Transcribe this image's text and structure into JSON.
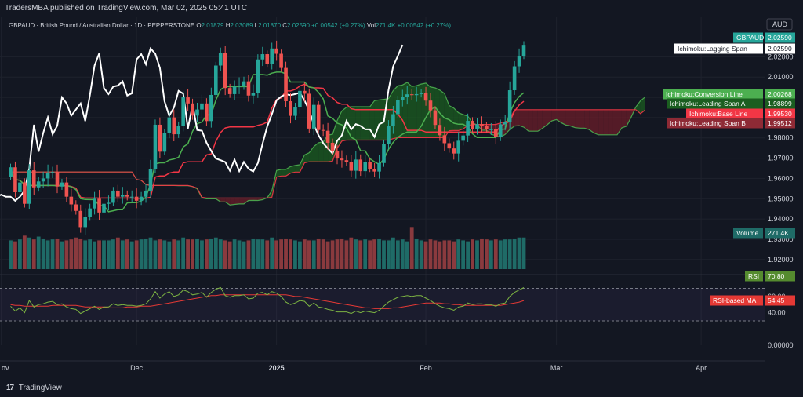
{
  "publish_line": "TradersMBA published on TradingView.com, Mar 02, 2025 05:41 UTC",
  "footer_logo": "TradingView",
  "colors": {
    "background": "#131722",
    "up": "#26a69a",
    "down": "#ef5350",
    "conversion": "#4caf50",
    "base": "#f23645",
    "lagging": "#ffffff",
    "cloud_bull": "#1b5e20",
    "cloud_bear": "#6b1e2a",
    "rsi": "#7cb342",
    "rsi_ma": "#e53935",
    "volume_up": "#1f6b67",
    "volume_down": "#8a3a3e"
  },
  "chart_data": [
    {
      "type": "candlestick",
      "symbol_info": {
        "name": "GBPAUD · British Pound / Australian Dollar · 1D · PEPPERSTONE",
        "o_label": "O",
        "o_value": "2.01879",
        "h_label": "H",
        "h_value": "2.03089",
        "l_label": "L",
        "l_value": "2.01870",
        "c_label": "C",
        "c_value": "2.02590",
        "change": "+0.00542 (+0.27%)",
        "vol_label": "Vol",
        "vol_value": "271.4K",
        "vol_change": "+0.00542 (+0.27%)"
      },
      "currency": "AUD",
      "y_ticks": [
        1.92,
        1.93,
        1.94,
        1.95,
        1.96,
        1.97,
        1.98,
        1.99,
        2.0,
        2.01,
        2.02
      ],
      "y_tick_labels": [
        "1.92000",
        "1.93000",
        "1.94000",
        "1.95000",
        "1.96000",
        "1.97000",
        "1.98000",
        "1.99000",
        "2.00000",
        "2.01000",
        "2.02000"
      ],
      "ylim": [
        1.9145,
        2.0395
      ],
      "x_labels": [
        {
          "label": "ov",
          "i": -2
        },
        {
          "label": "Dec",
          "i": 27
        },
        {
          "label": "2025",
          "i": 57
        },
        {
          "label": "Feb",
          "i": 89
        },
        {
          "label": "Mar",
          "i": 117
        },
        {
          "label": "Apr",
          "i": 148
        }
      ],
      "price_start": 1.9607,
      "closes": [
        1.9655,
        1.9532,
        1.958,
        1.9475,
        1.964,
        1.9556,
        1.9585,
        1.96,
        1.9625,
        1.9632,
        1.956,
        1.958,
        1.951,
        1.9472,
        1.944,
        1.936,
        1.9412,
        1.9452,
        1.95,
        1.9432,
        1.9475,
        1.948,
        1.954,
        1.951,
        1.952,
        1.951,
        1.951,
        1.949,
        1.951,
        1.954,
        1.9648,
        1.9865,
        1.9732,
        1.9824,
        1.9901,
        1.9818,
        1.986,
        2.0,
        1.997,
        1.991,
        1.994,
        1.997,
        1.9883,
        2.0012,
        2.0157,
        2.0217,
        2.0046,
        2.0016,
        2.0053,
        2.0058,
        2.0079,
        2.0009,
        2.002,
        2.0187,
        2.0213,
        2.0163,
        2.0241,
        2.0215,
        2.0145,
        1.9981,
        1.9909,
        1.995,
        2.0032,
        2.0018,
        1.9846,
        1.9963,
        1.9839,
        1.9835,
        1.9776,
        1.9735,
        1.9698,
        1.969,
        1.9681,
        1.9638,
        1.9693,
        1.9636,
        1.9681,
        1.9648,
        1.9634,
        1.9676,
        1.9771,
        1.9857,
        1.9917,
        1.9985,
        2.0004,
        2.0015,
        2.0011,
        2.0016,
        2.0023,
        1.9984,
        1.9936,
        1.9864,
        1.9813,
        1.9774,
        1.9748,
        1.9723,
        1.9786,
        1.9812,
        1.9884,
        1.9842,
        1.9868,
        1.9859,
        1.9842,
        1.9842,
        1.9805,
        1.9867,
        1.9879,
        2.0035,
        2.0153,
        2.0205,
        2.0259
      ],
      "volume": {
        "label": "Volume",
        "value_label": "271.4K",
        "values": [
          60,
          58,
          62,
          70,
          66,
          62,
          68,
          64,
          60,
          62,
          64,
          58,
          60,
          62,
          66,
          64,
          60,
          62,
          58,
          60,
          60,
          60,
          62,
          66,
          60,
          62,
          58,
          60,
          62,
          64,
          66,
          60,
          62,
          60,
          58,
          62,
          60,
          66,
          62,
          62,
          64,
          60,
          62,
          64,
          66,
          62,
          60,
          58,
          62,
          60,
          58,
          60,
          64,
          62,
          62,
          60,
          66,
          60,
          62,
          64,
          62,
          60,
          58,
          62,
          60,
          60,
          64,
          62,
          58,
          60,
          62,
          64,
          60,
          66,
          62,
          60,
          62,
          60,
          62,
          64,
          60,
          60,
          66,
          60,
          62,
          58,
          88,
          64,
          60,
          58,
          62,
          60,
          58,
          60,
          60,
          58,
          62,
          60,
          58,
          62,
          60,
          64,
          62,
          60,
          62,
          60,
          62,
          62,
          64,
          66,
          66
        ],
        "ylim": [
          0,
          100
        ]
      },
      "ichimoku": {
        "conversion_label": "Ichimoku:Conversion Line",
        "conversion_value": "2.00268",
        "base_label": "Ichimoku:Base Line",
        "base_value": "1.99530",
        "span_a_label": "Ichimoku:Leading Span A",
        "span_a_value": "1.98899",
        "span_b_label": "Ichimoku:Leading Span B",
        "span_b_value": "1.99512",
        "lagging_label": "Ichimoku:Lagging Span",
        "lagging_value": "2.02590",
        "lagging_shift": -26,
        "lead_shift": 26
      },
      "last_price_label": "GBPAUD",
      "last_price_value": "2.02590"
    },
    {
      "type": "line",
      "name": "RSI",
      "value_label": "70.80",
      "ma_label": "RSI-based MA",
      "ma_value": "54.45",
      "y_ticks": [
        0,
        40,
        60
      ],
      "y_tick_labels": [
        "0.00000",
        "40.00",
        "60.00"
      ],
      "band": [
        30,
        70
      ],
      "ylim": [
        0,
        85
      ],
      "rsi": [
        48,
        42,
        46,
        40,
        55,
        47,
        50,
        51,
        53,
        54,
        50,
        51,
        47,
        45,
        44,
        39,
        42,
        45,
        48,
        44,
        47,
        47,
        51,
        49,
        50,
        49,
        49,
        48,
        49,
        51,
        57,
        66,
        58,
        63,
        66,
        60,
        62,
        68,
        66,
        62,
        63,
        65,
        59,
        65,
        69,
        71,
        61,
        59,
        61,
        61,
        62,
        57,
        58,
        64,
        65,
        62,
        66,
        64,
        60,
        53,
        50,
        52,
        55,
        54,
        48,
        52,
        47,
        46,
        44,
        43,
        41,
        41,
        41,
        39,
        42,
        40,
        42,
        41,
        40,
        43,
        48,
        53,
        56,
        59,
        60,
        61,
        60,
        61,
        61,
        58,
        55,
        51,
        48,
        46,
        45,
        43,
        47,
        48,
        52,
        50,
        51,
        51,
        50,
        50,
        48,
        51,
        52,
        60,
        65,
        68,
        71
      ],
      "rsi_ma": [
        50,
        49,
        49,
        48,
        48,
        48,
        48,
        48,
        48,
        49,
        49,
        49,
        49,
        49,
        49,
        48,
        47,
        47,
        47,
        47,
        47,
        46,
        46,
        46,
        46,
        47,
        47,
        47,
        48,
        48,
        48,
        49,
        50,
        51,
        52,
        53,
        54,
        55,
        56,
        57,
        58,
        59,
        60,
        61,
        61,
        62,
        62,
        62,
        62,
        62,
        62,
        62,
        62,
        62,
        62,
        62,
        62,
        62,
        62,
        62,
        61,
        60,
        60,
        59,
        58,
        57,
        56,
        55,
        54,
        53,
        52,
        51,
        50,
        49,
        48,
        47,
        46,
        46,
        45,
        45,
        45,
        45,
        46,
        46,
        47,
        48,
        49,
        50,
        51,
        52,
        52,
        52,
        52,
        51,
        51,
        50,
        50,
        49,
        49,
        49,
        49,
        49,
        49,
        49,
        49,
        49,
        50,
        51,
        52,
        53,
        55
      ]
    }
  ]
}
